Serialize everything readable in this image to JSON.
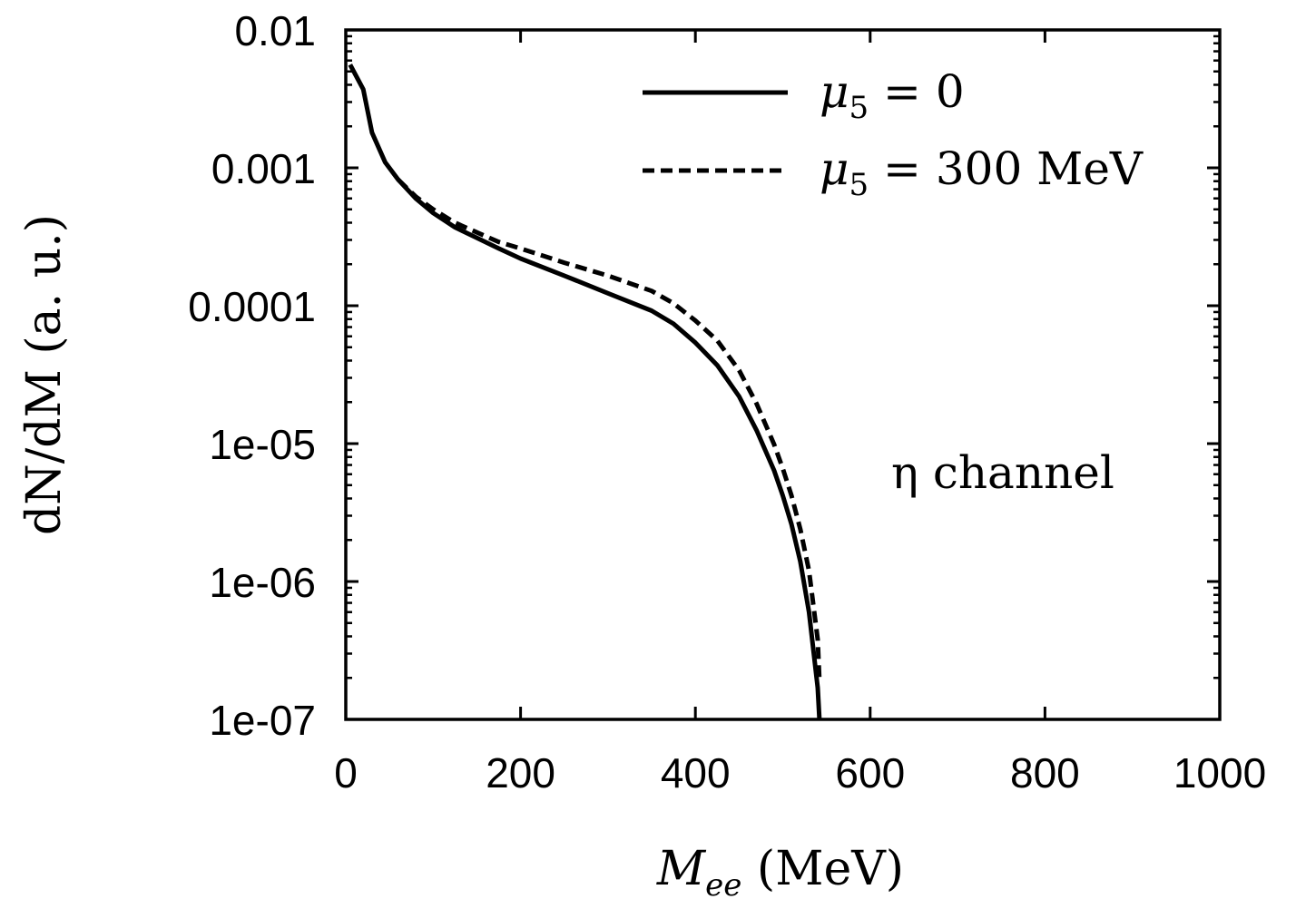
{
  "chart_data": {
    "type": "line",
    "xlabel": "M_ee (MeV)",
    "xlabel_main": "M",
    "xlabel_sub": "ee",
    "xlabel_unit": " (MeV)",
    "ylabel": "dN/dM (a. u.)",
    "xlim": [
      0,
      1000
    ],
    "ylim": [
      1e-07,
      0.01
    ],
    "yscale": "log",
    "grid": false,
    "legend_position": "top-right",
    "x_ticks": [
      0,
      200,
      400,
      600,
      800,
      1000
    ],
    "x_tick_labels": [
      "0",
      "200",
      "400",
      "600",
      "800",
      "1000"
    ],
    "y_ticks": [
      0.01,
      0.001,
      0.0001,
      1e-05,
      1e-06,
      1e-07
    ],
    "y_tick_labels": [
      "0.01",
      "0.001",
      "0.0001",
      "1e-05",
      "1e-06",
      "1e-07"
    ],
    "annotation": "η channel",
    "series": [
      {
        "name": "μ5 = 0",
        "name_prefix": "μ",
        "name_sub": "5",
        "name_suffix": " = 0",
        "style": "solid",
        "color": "#000000",
        "x": [
          5,
          20,
          30,
          45,
          60,
          80,
          100,
          125,
          150,
          175,
          200,
          250,
          300,
          350,
          375,
          400,
          425,
          450,
          470,
          490,
          500,
          510,
          520,
          530,
          540,
          542
        ],
        "y": [
          0.0056,
          0.0037,
          0.0018,
          0.0011,
          0.00082,
          0.0006,
          0.00047,
          0.00037,
          0.00031,
          0.00026,
          0.00022,
          0.000165,
          0.000123,
          9.2e-05,
          7.4e-05,
          5.4e-05,
          3.7e-05,
          2.2e-05,
          1.25e-05,
          6.4e-06,
          4.2e-06,
          2.6e-06,
          1.4e-06,
          6e-07,
          1.7e-07,
          1e-07
        ]
      },
      {
        "name": "μ5 = 300 MeV",
        "name_prefix": "μ",
        "name_sub": "5",
        "name_suffix": " = 300 MeV",
        "style": "dashed",
        "color": "#000000",
        "x": [
          60,
          80,
          100,
          125,
          150,
          175,
          200,
          250,
          300,
          350,
          375,
          400,
          425,
          450,
          470,
          490,
          500,
          510,
          520,
          530,
          540,
          542
        ],
        "y": [
          0.00082,
          0.00062,
          0.0005,
          0.0004,
          0.00034,
          0.00029,
          0.00026,
          0.000205,
          0.000165,
          0.000128,
          0.000104,
          7.8e-05,
          5.6e-05,
          3.4e-05,
          1.95e-05,
          9.9e-06,
          6.6e-06,
          4.2e-06,
          2.4e-06,
          1.2e-06,
          3.8e-07,
          1.9e-07
        ]
      }
    ]
  }
}
